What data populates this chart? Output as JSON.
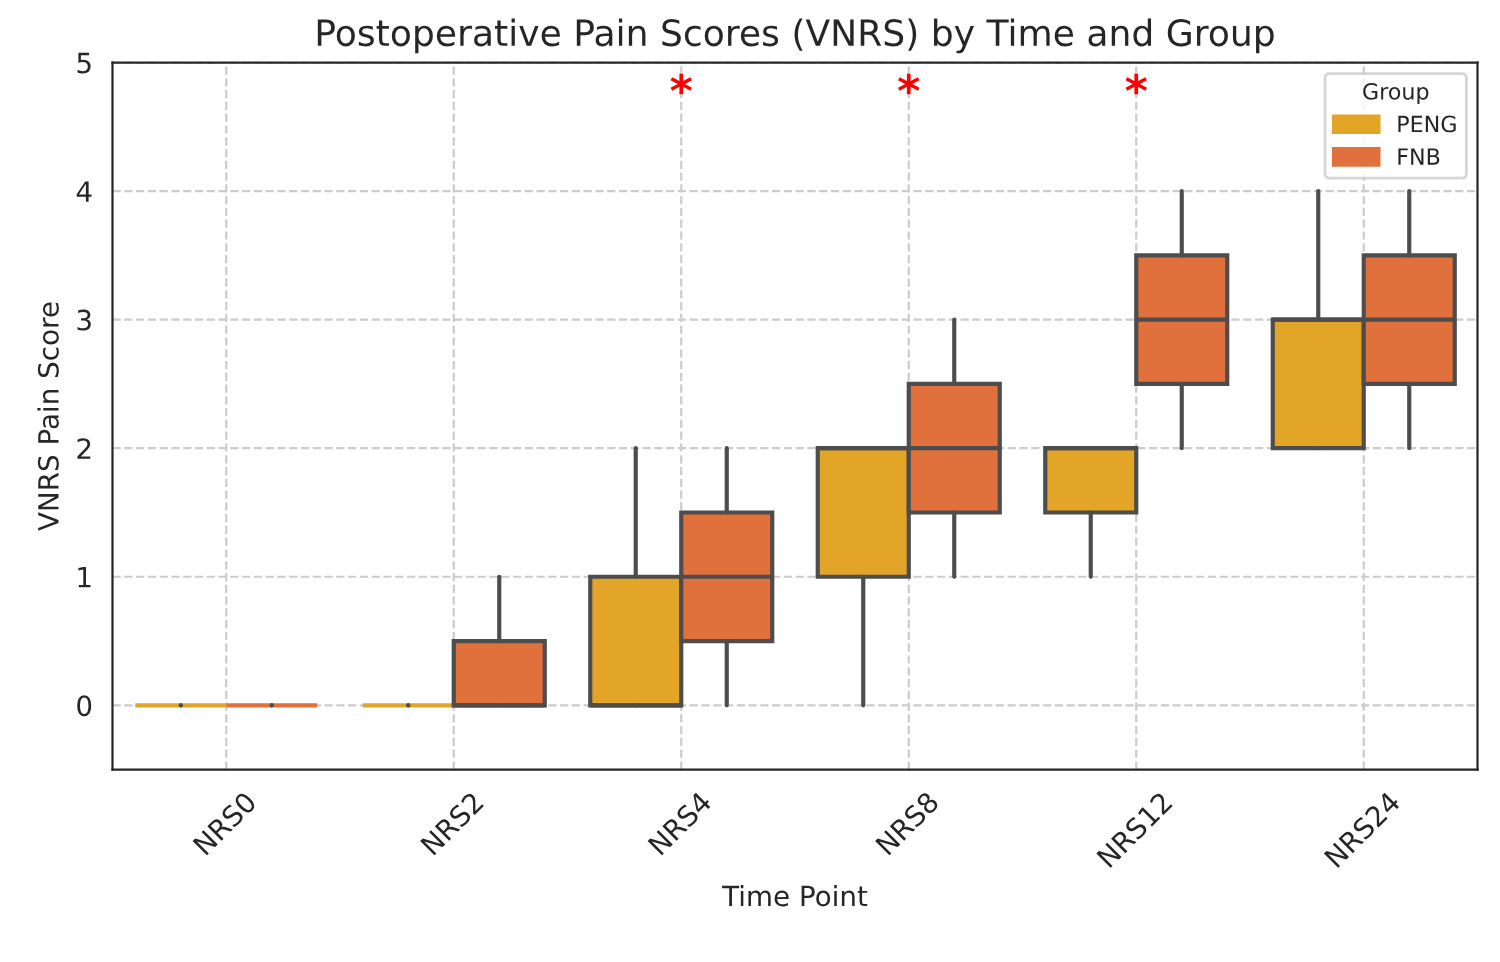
{
  "chart_data": {
    "type": "box",
    "title": "Postoperative Pain Scores (VNRS) by Time and Group",
    "xlabel": "Time Point",
    "ylabel": "VNRS Pain Score",
    "legend_title": "Group",
    "legend": "top right",
    "grid": true,
    "categories": [
      "NRS0",
      "NRS2",
      "NRS4",
      "NRS8",
      "NRS12",
      "NRS24"
    ],
    "ylim": [
      -0.5,
      5
    ],
    "yticks": [
      0,
      1,
      2,
      3,
      4,
      5
    ],
    "series": [
      {
        "name": "PENG",
        "color": "#e2a527",
        "boxes": [
          {
            "low": 0,
            "q1": 0,
            "median": 0,
            "q3": 0,
            "high": 0
          },
          {
            "low": 0,
            "q1": 0,
            "median": 0,
            "q3": 0,
            "high": 0
          },
          {
            "low": 0,
            "q1": 0,
            "median": 0,
            "q3": 1,
            "high": 2
          },
          {
            "low": 0,
            "q1": 1,
            "median": 2,
            "q3": 2,
            "high": 2
          },
          {
            "low": 1,
            "q1": 1.5,
            "median": 2,
            "q3": 2,
            "high": 2
          },
          {
            "low": 2,
            "q1": 2,
            "median": 3,
            "q3": 3,
            "high": 4
          }
        ]
      },
      {
        "name": "FNB",
        "color": "#e0703c",
        "boxes": [
          {
            "low": 0,
            "q1": 0,
            "median": 0,
            "q3": 0,
            "high": 0
          },
          {
            "low": 0,
            "q1": 0,
            "median": 0,
            "q3": 0.5,
            "high": 1
          },
          {
            "low": 0,
            "q1": 0.5,
            "median": 1,
            "q3": 1.5,
            "high": 2
          },
          {
            "low": 1,
            "q1": 1.5,
            "median": 2,
            "q3": 2.5,
            "high": 3
          },
          {
            "low": 2,
            "q1": 2.5,
            "median": 3,
            "q3": 3.5,
            "high": 4
          },
          {
            "low": 2,
            "q1": 2.5,
            "median": 3,
            "q3": 3.5,
            "high": 4
          }
        ]
      }
    ],
    "annotations": [
      "*",
      "*",
      "*"
    ]
  }
}
